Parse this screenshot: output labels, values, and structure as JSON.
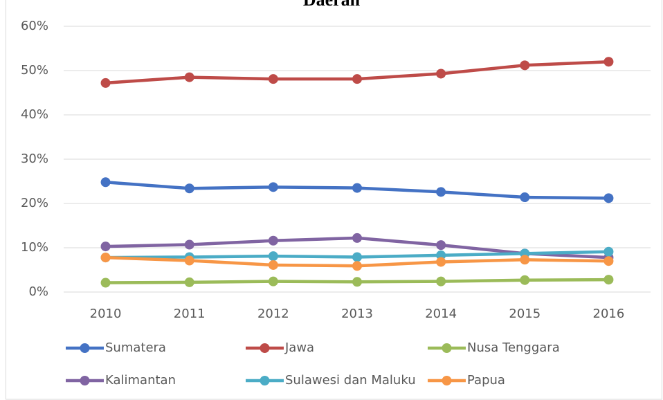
{
  "chart_data": {
    "type": "line",
    "title": "Daerah",
    "categories": [
      "2010",
      "2011",
      "2012",
      "2013",
      "2014",
      "2015",
      "2016"
    ],
    "series": [
      {
        "name": "Sumatera",
        "color": "#4472c4",
        "values": [
          24.8,
          23.4,
          23.7,
          23.5,
          22.6,
          21.4,
          21.2
        ]
      },
      {
        "name": "Jawa",
        "color": "#be4b48",
        "values": [
          47.2,
          48.5,
          48.1,
          48.1,
          49.3,
          51.2,
          52.0
        ]
      },
      {
        "name": "Nusa Tenggara",
        "color": "#9bbb59",
        "values": [
          2.1,
          2.2,
          2.4,
          2.3,
          2.4,
          2.7,
          2.8
        ]
      },
      {
        "name": "Kalimantan",
        "color": "#8064a2",
        "values": [
          10.3,
          10.7,
          11.6,
          12.2,
          10.6,
          8.7,
          7.8
        ]
      },
      {
        "name": "Sulawesi dan Maluku",
        "color": "#4bacc6",
        "values": [
          7.8,
          7.9,
          8.1,
          7.9,
          8.3,
          8.7,
          9.1
        ]
      },
      {
        "name": "Papua",
        "color": "#f79646",
        "values": [
          7.8,
          7.1,
          6.1,
          5.9,
          6.8,
          7.3,
          7.0
        ]
      }
    ],
    "ylim": [
      0,
      60
    ],
    "yticks": [
      {
        "value": 0,
        "label": "0%"
      },
      {
        "value": 10,
        "label": "10%"
      },
      {
        "value": 20,
        "label": "20%"
      },
      {
        "value": 30,
        "label": "30%"
      },
      {
        "value": 40,
        "label": "40%"
      },
      {
        "value": 50,
        "label": "50%"
      },
      {
        "value": 60,
        "label": "60%"
      }
    ],
    "grid": true,
    "legend": "bottom"
  }
}
